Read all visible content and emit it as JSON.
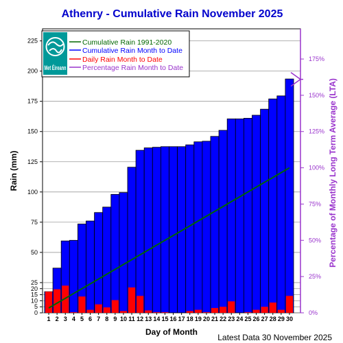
{
  "chart_data": {
    "type": "bar",
    "title": "Athenry - Cumulative Rain November   2025",
    "xlabel": "Day of Month",
    "ylabel": "Rain (mm)",
    "ylabel_right": "Percentage  of Monthly Long Term Average (LTA)",
    "footer": "Latest Data 30 November 2025",
    "logo": "Met Éireann",
    "ylim": [
      0,
      235
    ],
    "yticks_left": [
      0,
      5,
      10,
      15,
      20,
      25,
      50,
      75,
      100,
      125,
      150,
      175,
      200,
      225
    ],
    "yticks_right": [
      "0%",
      "25%",
      "50%",
      "75%",
      "100%",
      "125%",
      "150%",
      "175%"
    ],
    "lta_total": 120,
    "days": [
      1,
      2,
      3,
      4,
      5,
      6,
      7,
      8,
      9,
      10,
      11,
      12,
      13,
      14,
      15,
      16,
      17,
      18,
      19,
      20,
      21,
      22,
      23,
      24,
      25,
      26,
      27,
      28,
      29,
      30
    ],
    "series": [
      {
        "name": "Cumulative Rain 1991-2020",
        "type": "line",
        "color": "#006600",
        "values": [
          4,
          8,
          12,
          16,
          20,
          24,
          28,
          32,
          36,
          40,
          44,
          48,
          52,
          56,
          60,
          64,
          68,
          72,
          76,
          80,
          84,
          88,
          92,
          96,
          100,
          104,
          108,
          112,
          116,
          120
        ]
      },
      {
        "name": "Cumulative Rain Month to Date",
        "type": "bar",
        "color": "#0000ff",
        "values": [
          17.5,
          37,
          59.5,
          60,
          73.5,
          76,
          83,
          87.5,
          98,
          99.5,
          120.5,
          134.5,
          136.5,
          137,
          137.5,
          137.5,
          137.5,
          139,
          141.5,
          142,
          146,
          151,
          160.5,
          160.5,
          161,
          163.5,
          168.5,
          177,
          179.5,
          193.5
        ]
      },
      {
        "name": "Daily Rain Month to Date",
        "type": "bar",
        "color": "#ff0000",
        "values": [
          17.5,
          19.5,
          22.5,
          0.5,
          13.5,
          2.5,
          7,
          4.5,
          10.5,
          1.5,
          21,
          14,
          2,
          0.5,
          0.5,
          0,
          0,
          1.5,
          2.5,
          0.5,
          4,
          5,
          9.5,
          0,
          0.5,
          2.5,
          5,
          8.5,
          2.5,
          14
        ]
      },
      {
        "name": "Percentage Rain Month to Date",
        "type": "marker",
        "color": "#9933cc",
        "values": [
          161
        ]
      }
    ]
  }
}
